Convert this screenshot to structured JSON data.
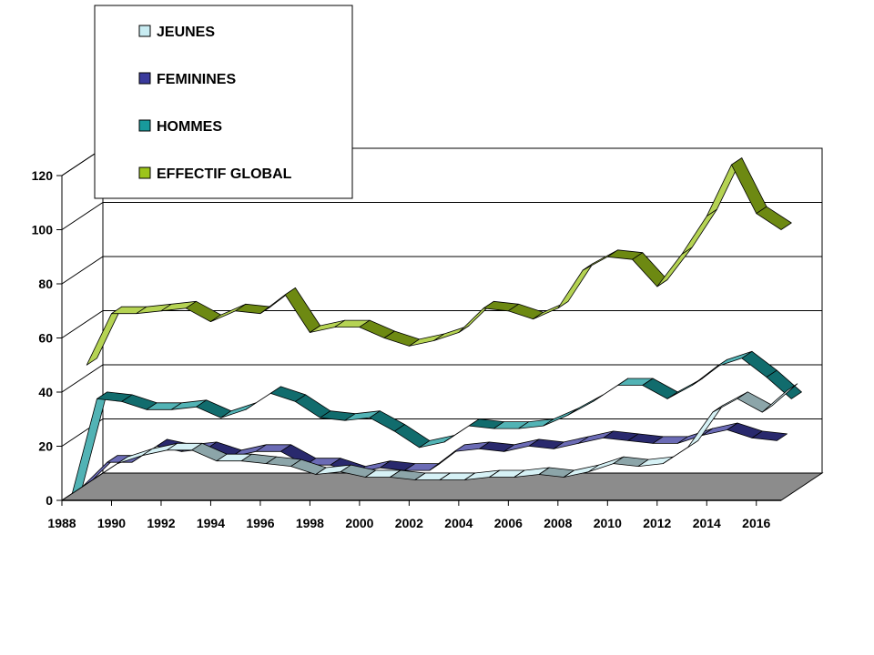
{
  "chart_data": {
    "type": "line",
    "style": "3d-ribbon",
    "x": [
      1988,
      1989,
      1990,
      1991,
      1992,
      1993,
      1994,
      1995,
      1996,
      1997,
      1998,
      1999,
      2000,
      2001,
      2002,
      2003,
      2004,
      2005,
      2006,
      2007,
      2008,
      2009,
      2010,
      2011,
      2012,
      2013,
      2014,
      2015,
      2016,
      2017
    ],
    "x_tick_labels": [
      "1988",
      "1990",
      "1992",
      "1994",
      "1996",
      "1998",
      "2000",
      "2002",
      "2004",
      "2006",
      "2008",
      "2010",
      "2012",
      "2014",
      "2016"
    ],
    "y_tick_labels": [
      "0",
      "20",
      "40",
      "60",
      "80",
      "100",
      "120"
    ],
    "ylim": [
      0,
      120
    ],
    "grid": true,
    "legend_position": "top-left",
    "series": [
      {
        "name": "JEUNES",
        "color": "#c8ecf2",
        "values": [
          0,
          6,
          9,
          11,
          11,
          7,
          7,
          6,
          5,
          2,
          3,
          1,
          1,
          0,
          0,
          0,
          1,
          1,
          2,
          1,
          3,
          6,
          5,
          6,
          12,
          25,
          30,
          25,
          33,
          null
        ]
      },
      {
        "name": "FEMININES",
        "color": "#3a3a9c",
        "values": [
          0,
          9,
          9,
          15,
          13,
          14,
          11,
          13,
          13,
          8,
          8,
          5,
          7,
          6,
          6,
          13,
          14,
          13,
          15,
          14,
          16,
          18,
          17,
          16,
          16,
          19,
          21,
          18,
          17,
          null
        ]
      },
      {
        "name": "HOMMES",
        "color": "#189a9c",
        "values": [
          0,
          35,
          34,
          31,
          31,
          32,
          28,
          31,
          37,
          34,
          28,
          27,
          28,
          23,
          17,
          19,
          25,
          24,
          24,
          25,
          29,
          34,
          40,
          40,
          35,
          40,
          47,
          50,
          43,
          35
        ]
      },
      {
        "name": "EFFECTIF  GLOBAL",
        "color": "#9cc41a",
        "values": [
          null,
          50,
          69,
          69,
          70,
          71,
          66,
          70,
          69,
          76,
          62,
          64,
          64,
          60,
          57,
          59,
          62,
          71,
          70,
          67,
          71,
          85,
          90,
          89,
          79,
          91,
          105,
          124,
          106,
          100
        ]
      }
    ]
  }
}
